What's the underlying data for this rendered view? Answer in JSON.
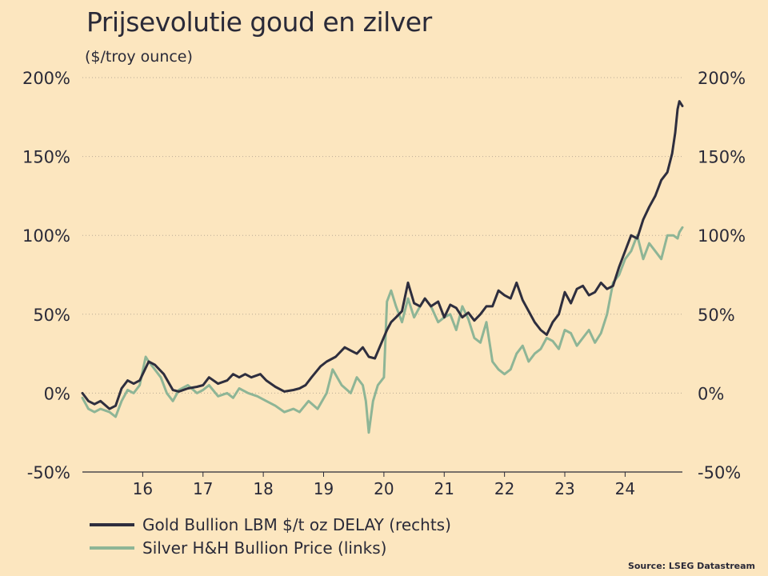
{
  "chart_data": {
    "type": "line",
    "title": "Prijsevolutie goud en zilver",
    "subtitle": "($/troy ounce)",
    "source": "Source: LSEG Datastream",
    "x_range": [
      2015.0,
      2024.95
    ],
    "x_ticks": [
      {
        "value": 2016,
        "label": "16"
      },
      {
        "value": 2017,
        "label": "17"
      },
      {
        "value": 2018,
        "label": "18"
      },
      {
        "value": 2019,
        "label": "19"
      },
      {
        "value": 2020,
        "label": "20"
      },
      {
        "value": 2021,
        "label": "21"
      },
      {
        "value": 2022,
        "label": "22"
      },
      {
        "value": 2023,
        "label": "23"
      },
      {
        "value": 2024,
        "label": "24"
      }
    ],
    "y_left": {
      "min": -50,
      "max": 200,
      "ticks": [
        "-50%",
        "0%",
        "50%",
        "100%",
        "150%",
        "200%"
      ]
    },
    "y_right": {
      "min": -50,
      "max": 200,
      "ticks": [
        "-50%",
        "0%",
        "50%",
        "100%",
        "150%",
        "200%"
      ]
    },
    "grid": "horizontal dotted",
    "legend_position": "bottom-left",
    "series": [
      {
        "name": "Gold Bullion LBM $/t oz DELAY (rechts)",
        "axis": "right",
        "color": "#2e2e3e",
        "x": [
          2015.0,
          2015.1,
          2015.2,
          2015.3,
          2015.45,
          2015.55,
          2015.65,
          2015.75,
          2015.85,
          2015.95,
          2016.1,
          2016.2,
          2016.35,
          2016.5,
          2016.6,
          2016.75,
          2016.9,
          2017.0,
          2017.1,
          2017.25,
          2017.4,
          2017.5,
          2017.6,
          2017.7,
          2017.8,
          2017.95,
          2018.05,
          2018.2,
          2018.35,
          2018.5,
          2018.6,
          2018.7,
          2018.8,
          2018.95,
          2019.05,
          2019.2,
          2019.35,
          2019.45,
          2019.55,
          2019.65,
          2019.75,
          2019.85,
          2019.95,
          2020.05,
          2020.12,
          2020.2,
          2020.3,
          2020.4,
          2020.5,
          2020.6,
          2020.68,
          2020.78,
          2020.9,
          2021.0,
          2021.1,
          2021.2,
          2021.3,
          2021.4,
          2021.5,
          2021.6,
          2021.7,
          2021.8,
          2021.9,
          2022.0,
          2022.1,
          2022.2,
          2022.3,
          2022.4,
          2022.5,
          2022.6,
          2022.7,
          2022.8,
          2022.9,
          2023.0,
          2023.1,
          2023.2,
          2023.3,
          2023.4,
          2023.5,
          2023.6,
          2023.7,
          2023.8,
          2023.9,
          2024.0,
          2024.1,
          2024.2,
          2024.3,
          2024.4,
          2024.5,
          2024.6,
          2024.7,
          2024.78,
          2024.83,
          2024.87,
          2024.9,
          2024.95
        ],
        "y": [
          0,
          -5,
          -7,
          -5,
          -10,
          -8,
          3,
          8,
          6,
          8,
          20,
          18,
          12,
          2,
          1,
          3,
          4,
          5,
          10,
          6,
          8,
          12,
          10,
          12,
          10,
          12,
          8,
          4,
          1,
          2,
          3,
          5,
          10,
          17,
          20,
          23,
          29,
          27,
          25,
          29,
          23,
          22,
          31,
          40,
          45,
          48,
          52,
          70,
          57,
          55,
          60,
          55,
          58,
          48,
          56,
          54,
          48,
          51,
          46,
          50,
          55,
          55,
          65,
          62,
          60,
          70,
          59,
          52,
          45,
          40,
          37,
          45,
          50,
          64,
          57,
          66,
          68,
          62,
          64,
          70,
          66,
          68,
          80,
          90,
          100,
          98,
          110,
          118,
          125,
          135,
          140,
          152,
          165,
          180,
          185,
          182
        ]
      },
      {
        "name": "Silver H&H Bullion Price (links)",
        "axis": "left",
        "color": "#8eb596",
        "x": [
          2015.0,
          2015.1,
          2015.2,
          2015.3,
          2015.45,
          2015.55,
          2015.65,
          2015.75,
          2015.85,
          2015.95,
          2016.05,
          2016.1,
          2016.2,
          2016.3,
          2016.4,
          2016.5,
          2016.6,
          2016.75,
          2016.9,
          2017.0,
          2017.1,
          2017.25,
          2017.4,
          2017.5,
          2017.6,
          2017.75,
          2017.9,
          2018.05,
          2018.2,
          2018.35,
          2018.5,
          2018.6,
          2018.75,
          2018.9,
          2019.05,
          2019.15,
          2019.3,
          2019.45,
          2019.55,
          2019.65,
          2019.7,
          2019.75,
          2019.82,
          2019.9,
          2020.0,
          2020.05,
          2020.12,
          2020.2,
          2020.3,
          2020.4,
          2020.5,
          2020.6,
          2020.68,
          2020.78,
          2020.9,
          2021.0,
          2021.1,
          2021.2,
          2021.3,
          2021.4,
          2021.5,
          2021.6,
          2021.7,
          2021.8,
          2021.9,
          2022.0,
          2022.1,
          2022.2,
          2022.3,
          2022.4,
          2022.5,
          2022.6,
          2022.7,
          2022.8,
          2022.9,
          2023.0,
          2023.1,
          2023.2,
          2023.3,
          2023.4,
          2023.5,
          2023.6,
          2023.7,
          2023.8,
          2023.9,
          2024.0,
          2024.1,
          2024.2,
          2024.3,
          2024.4,
          2024.5,
          2024.6,
          2024.7,
          2024.8,
          2024.87,
          2024.9,
          2024.95
        ],
        "y": [
          -3,
          -10,
          -12,
          -10,
          -12,
          -15,
          -5,
          2,
          0,
          5,
          23,
          20,
          15,
          10,
          0,
          -5,
          2,
          5,
          0,
          2,
          5,
          -2,
          0,
          -3,
          3,
          0,
          -2,
          -5,
          -8,
          -12,
          -10,
          -12,
          -5,
          -10,
          0,
          15,
          5,
          0,
          10,
          5,
          -5,
          -25,
          -5,
          5,
          10,
          58,
          65,
          55,
          45,
          60,
          48,
          55,
          60,
          55,
          45,
          48,
          50,
          40,
          55,
          47,
          35,
          32,
          45,
          20,
          15,
          12,
          15,
          25,
          30,
          20,
          25,
          28,
          35,
          33,
          28,
          40,
          38,
          30,
          35,
          40,
          32,
          38,
          50,
          70,
          75,
          85,
          90,
          100,
          85,
          95,
          90,
          85,
          100,
          100,
          98,
          102,
          105
        ]
      }
    ]
  }
}
